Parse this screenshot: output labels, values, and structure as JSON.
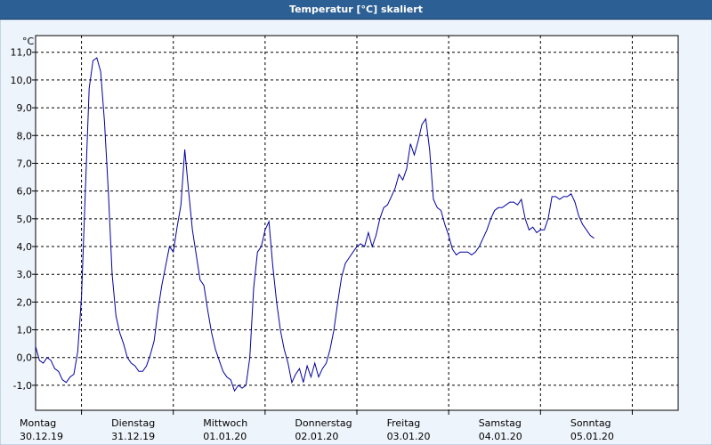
{
  "chart_data": {
    "type": "line",
    "title": "Temperatur [°C] skaliert",
    "ylabel": "°C",
    "ylim": [
      -1.9,
      11.6
    ],
    "yticks": [
      -1.0,
      0.0,
      1.0,
      2.0,
      3.0,
      4.0,
      5.0,
      6.0,
      7.0,
      8.0,
      9.0,
      10.0,
      11.0
    ],
    "ytick_labels": [
      "-1,0",
      "0,0",
      "1,0",
      "2,0",
      "3,0",
      "4,0",
      "5,0",
      "6,0",
      "7,0",
      "8,0",
      "9,0",
      "10,0",
      "11,0"
    ],
    "xlim": [
      "30.12.19 00:00",
      "06.01.20 00:00"
    ],
    "xticks": [
      {
        "day": "Montag",
        "date": "30.12.19"
      },
      {
        "day": "Dienstag",
        "date": "31.12.19"
      },
      {
        "day": "Mittwoch",
        "date": "01.01.20"
      },
      {
        "day": "Donnerstag",
        "date": "02.01.20"
      },
      {
        "day": "Freitag",
        "date": "03.01.20"
      },
      {
        "day": "Samstag",
        "date": "04.01.20"
      },
      {
        "day": "Sonntag",
        "date": "05.01.20"
      }
    ],
    "grid": true,
    "series": [
      {
        "color": "#0000a0",
        "points": [
          [
            "30.12.19 00:00",
            0.4
          ],
          [
            "30.12.19 01:00",
            -0.1
          ],
          [
            "30.12.19 02:00",
            -0.2
          ],
          [
            "30.12.19 03:00",
            0.0
          ],
          [
            "30.12.19 04:00",
            -0.1
          ],
          [
            "30.12.19 05:00",
            -0.4
          ],
          [
            "30.12.19 06:00",
            -0.5
          ],
          [
            "30.12.19 07:00",
            -0.8
          ],
          [
            "30.12.19 08:00",
            -0.9
          ],
          [
            "30.12.19 09:00",
            -0.7
          ],
          [
            "30.12.19 10:00",
            -0.6
          ],
          [
            "30.12.19 11:00",
            0.2
          ],
          [
            "30.12.19 12:00",
            2.2
          ],
          [
            "30.12.19 13:00",
            6.0
          ],
          [
            "30.12.19 14:00",
            9.7
          ],
          [
            "30.12.19 15:00",
            10.7
          ],
          [
            "30.12.19 16:00",
            10.8
          ],
          [
            "30.12.19 17:00",
            10.3
          ],
          [
            "30.12.19 18:00",
            8.5
          ],
          [
            "30.12.19 19:00",
            6.0
          ],
          [
            "30.12.19 20:00",
            3.0
          ],
          [
            "30.12.19 21:00",
            1.5
          ],
          [
            "30.12.19 22:00",
            0.9
          ],
          [
            "30.12.19 23:00",
            0.5
          ],
          [
            "31.12.19 00:00",
            0.0
          ],
          [
            "31.12.19 01:00",
            -0.2
          ],
          [
            "31.12.19 02:00",
            -0.3
          ],
          [
            "31.12.19 03:00",
            -0.5
          ],
          [
            "31.12.19 04:00",
            -0.5
          ],
          [
            "31.12.19 05:00",
            -0.3
          ],
          [
            "31.12.19 06:00",
            0.1
          ],
          [
            "31.12.19 07:00",
            0.6
          ],
          [
            "31.12.19 08:00",
            1.7
          ],
          [
            "31.12.19 09:00",
            2.6
          ],
          [
            "31.12.19 10:00",
            3.3
          ],
          [
            "31.12.19 11:00",
            4.0
          ],
          [
            "31.12.19 12:00",
            3.8
          ],
          [
            "31.12.19 13:00",
            4.7
          ],
          [
            "31.12.19 14:00",
            5.5
          ],
          [
            "31.12.19 15:00",
            7.5
          ],
          [
            "31.12.19 16:00",
            6.0
          ],
          [
            "31.12.19 17:00",
            4.6
          ],
          [
            "31.12.19 18:00",
            3.7
          ],
          [
            "31.12.19 19:00",
            2.8
          ],
          [
            "31.12.19 20:00",
            2.6
          ],
          [
            "31.12.19 21:00",
            1.7
          ],
          [
            "31.12.19 22:00",
            0.9
          ],
          [
            "31.12.19 23:00",
            0.3
          ],
          [
            "01.01.20 00:00",
            -0.1
          ],
          [
            "01.01.20 01:00",
            -0.5
          ],
          [
            "01.01.20 02:00",
            -0.7
          ],
          [
            "01.01.20 03:00",
            -0.8
          ],
          [
            "01.01.20 04:00",
            -1.2
          ],
          [
            "01.01.20 05:00",
            -1.0
          ],
          [
            "01.01.20 06:00",
            -1.1
          ],
          [
            "01.01.20 07:00",
            -1.0
          ],
          [
            "01.01.20 08:00",
            0.0
          ],
          [
            "01.01.20 09:00",
            2.5
          ],
          [
            "01.01.20 10:00",
            3.8
          ],
          [
            "01.01.20 11:00",
            4.0
          ],
          [
            "01.01.20 12:00",
            4.6
          ],
          [
            "01.01.20 13:00",
            4.9
          ],
          [
            "01.01.20 14:00",
            3.3
          ],
          [
            "01.01.20 15:00",
            2.0
          ],
          [
            "01.01.20 16:00",
            1.0
          ],
          [
            "01.01.20 17:00",
            0.3
          ],
          [
            "01.01.20 18:00",
            -0.2
          ],
          [
            "01.01.20 19:00",
            -0.9
          ],
          [
            "01.01.20 20:00",
            -0.6
          ],
          [
            "01.01.20 21:00",
            -0.4
          ],
          [
            "01.01.20 22:00",
            -0.9
          ],
          [
            "01.01.20 23:00",
            -0.3
          ],
          [
            "02.01.20 00:00",
            -0.7
          ],
          [
            "02.01.20 01:00",
            -0.2
          ],
          [
            "02.01.20 02:00",
            -0.7
          ],
          [
            "02.01.20 03:00",
            -0.4
          ],
          [
            "02.01.20 04:00",
            -0.2
          ],
          [
            "02.01.20 05:00",
            0.3
          ],
          [
            "02.01.20 06:00",
            1.0
          ],
          [
            "02.01.20 07:00",
            2.0
          ],
          [
            "02.01.20 08:00",
            2.9
          ],
          [
            "02.01.20 09:00",
            3.4
          ],
          [
            "02.01.20 10:00",
            3.6
          ],
          [
            "02.01.20 11:00",
            3.8
          ],
          [
            "02.01.20 12:00",
            4.0
          ],
          [
            "02.01.20 13:00",
            4.1
          ],
          [
            "02.01.20 14:00",
            4.0
          ],
          [
            "02.01.20 15:00",
            4.5
          ],
          [
            "02.01.20 16:00",
            4.0
          ],
          [
            "02.01.20 17:00",
            4.4
          ],
          [
            "02.01.20 18:00",
            5.0
          ],
          [
            "02.01.20 19:00",
            5.4
          ],
          [
            "02.01.20 20:00",
            5.5
          ],
          [
            "02.01.20 21:00",
            5.8
          ],
          [
            "02.01.20 22:00",
            6.1
          ],
          [
            "02.01.20 23:00",
            6.6
          ],
          [
            "03.01.20 00:00",
            6.4
          ],
          [
            "03.01.20 01:00",
            6.8
          ],
          [
            "03.01.20 02:00",
            7.7
          ],
          [
            "03.01.20 03:00",
            7.3
          ],
          [
            "03.01.20 04:00",
            7.8
          ],
          [
            "03.01.20 05:00",
            8.4
          ],
          [
            "03.01.20 06:00",
            8.6
          ],
          [
            "03.01.20 07:00",
            7.5
          ],
          [
            "03.01.20 08:00",
            5.7
          ],
          [
            "03.01.20 09:00",
            5.4
          ],
          [
            "03.01.20 10:00",
            5.3
          ],
          [
            "03.01.20 11:00",
            4.8
          ],
          [
            "03.01.20 12:00",
            4.4
          ],
          [
            "03.01.20 13:00",
            3.9
          ],
          [
            "03.01.20 14:00",
            3.7
          ],
          [
            "03.01.20 15:00",
            3.8
          ],
          [
            "03.01.20 16:00",
            3.8
          ],
          [
            "03.01.20 17:00",
            3.8
          ],
          [
            "03.01.20 18:00",
            3.7
          ],
          [
            "03.01.20 19:00",
            3.8
          ],
          [
            "03.01.20 20:00",
            4.0
          ],
          [
            "03.01.20 21:00",
            4.3
          ],
          [
            "03.01.20 22:00",
            4.6
          ],
          [
            "03.01.20 23:00",
            5.0
          ],
          [
            "04.01.20 00:00",
            5.3
          ],
          [
            "04.01.20 01:00",
            5.4
          ],
          [
            "04.01.20 02:00",
            5.4
          ],
          [
            "04.01.20 03:00",
            5.5
          ],
          [
            "04.01.20 04:00",
            5.6
          ],
          [
            "04.01.20 05:00",
            5.6
          ],
          [
            "04.01.20 06:00",
            5.5
          ],
          [
            "04.01.20 07:00",
            5.7
          ],
          [
            "04.01.20 08:00",
            5.0
          ],
          [
            "04.01.20 09:00",
            4.6
          ],
          [
            "04.01.20 10:00",
            4.7
          ],
          [
            "04.01.20 11:00",
            4.5
          ],
          [
            "04.01.20 12:00",
            4.6
          ],
          [
            "04.01.20 13:00",
            4.6
          ],
          [
            "04.01.20 14:00",
            5.0
          ],
          [
            "04.01.20 15:00",
            5.8
          ],
          [
            "04.01.20 16:00",
            5.8
          ],
          [
            "04.01.20 17:00",
            5.7
          ],
          [
            "04.01.20 18:00",
            5.8
          ],
          [
            "04.01.20 19:00",
            5.8
          ],
          [
            "04.01.20 20:00",
            5.9
          ],
          [
            "04.01.20 21:00",
            5.6
          ],
          [
            "04.01.20 22:00",
            5.1
          ],
          [
            "04.01.20 23:00",
            4.8
          ],
          [
            "05.01.20 00:00",
            4.6
          ],
          [
            "05.01.20 01:00",
            4.4
          ],
          [
            "05.01.20 02:00",
            4.3
          ]
        ]
      }
    ]
  }
}
